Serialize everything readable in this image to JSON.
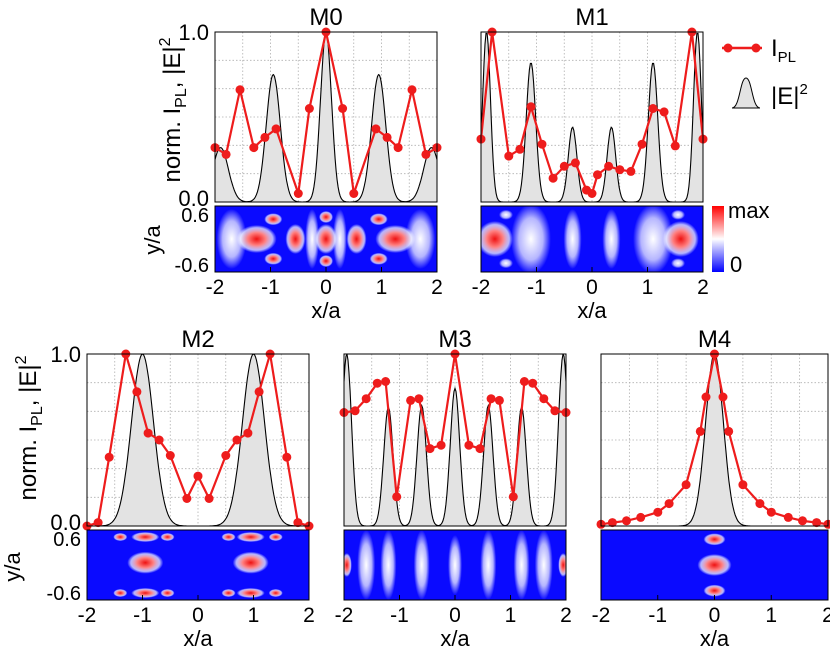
{
  "legend": {
    "ipl_main": "I",
    "ipl_sub": "PL",
    "e2_main": "|E|",
    "e2_sup": "2"
  },
  "colorbar": {
    "max_label": "max",
    "min_label": "0",
    "colors": [
      "#0000ff",
      "#ffffff",
      "#ff0000"
    ]
  },
  "ylabel_main": "norm. I",
  "ylabel_sub": "PL",
  "ylabel_rest": ", |E|",
  "ylabel_sup": "2",
  "map_ylabel": "y/a",
  "colors": {
    "ipl": "#ee1c1c",
    "field_fill": "#e3e3e3",
    "field_line": "#000000"
  },
  "chart_data": [
    {
      "type": "line",
      "title": "M0",
      "xlabel": "x/a",
      "xlim": [
        -2,
        2
      ],
      "ylim": [
        0,
        1
      ],
      "x_ticks": [
        "-2",
        "-1",
        "0",
        "1",
        "2"
      ],
      "y_ticks": [
        "0.0",
        "1.0"
      ],
      "map_y_ticks": [
        "0.6",
        "-0.6"
      ],
      "series": [
        {
          "name": "I_PL",
          "x": [
            -2.0,
            -1.8,
            -1.55,
            -1.3,
            -1.1,
            -0.9,
            -0.5,
            -0.3,
            0.0,
            0.3,
            0.5,
            0.9,
            1.1,
            1.3,
            1.55,
            1.8,
            2.0
          ],
          "y": [
            0.32,
            0.28,
            0.66,
            0.32,
            0.38,
            0.43,
            0.05,
            0.55,
            1.0,
            0.55,
            0.05,
            0.43,
            0.38,
            0.32,
            0.66,
            0.28,
            0.32
          ]
        }
      ],
      "field_peaks": [
        [
          -1.9,
          0.32,
          0.2
        ],
        [
          -0.95,
          0.75,
          0.18
        ],
        [
          0.0,
          1.0,
          0.14
        ],
        [
          0.95,
          0.75,
          0.18
        ],
        [
          1.9,
          0.32,
          0.2
        ]
      ]
    },
    {
      "type": "line",
      "title": "M1",
      "xlabel": "x/a",
      "xlim": [
        -2,
        2
      ],
      "ylim": [
        0,
        1
      ],
      "x_ticks": [
        "-2",
        "-1",
        "0",
        "1",
        "2"
      ],
      "y_ticks": [],
      "map_y_ticks": [],
      "series": [
        {
          "name": "I_PL",
          "x": [
            -2.0,
            -1.8,
            -1.5,
            -1.3,
            -1.1,
            -0.9,
            -0.7,
            -0.5,
            -0.3,
            -0.1,
            0.0,
            0.1,
            0.3,
            0.5,
            0.7,
            0.9,
            1.1,
            1.3,
            1.5,
            1.8,
            2.0
          ],
          "y": [
            0.37,
            1.0,
            0.27,
            0.31,
            0.56,
            0.34,
            0.14,
            0.21,
            0.23,
            0.07,
            0.05,
            0.16,
            0.21,
            0.19,
            0.18,
            0.34,
            0.55,
            0.53,
            0.33,
            1.0,
            0.37
          ]
        }
      ],
      "field_peaks": [
        [
          -1.9,
          1.0,
          0.1
        ],
        [
          -1.1,
          0.82,
          0.12
        ],
        [
          -0.35,
          0.44,
          0.11
        ],
        [
          0.35,
          0.44,
          0.11
        ],
        [
          1.1,
          0.82,
          0.12
        ],
        [
          1.9,
          1.0,
          0.1
        ]
      ]
    },
    {
      "type": "line",
      "title": "M2",
      "xlabel": "x/a",
      "xlim": [
        -2,
        2
      ],
      "ylim": [
        0,
        1
      ],
      "x_ticks": [
        "-2",
        "-1",
        "0",
        "1",
        "2"
      ],
      "y_ticks": [
        "0.0",
        "1.0"
      ],
      "map_y_ticks": [
        "0.6",
        "-0.6"
      ],
      "series": [
        {
          "name": "I_PL",
          "x": [
            -2.0,
            -1.8,
            -1.6,
            -1.3,
            -1.1,
            -0.9,
            -0.7,
            -0.5,
            -0.2,
            0.0,
            0.2,
            0.5,
            0.7,
            0.9,
            1.1,
            1.3,
            1.6,
            1.8,
            2.0
          ],
          "y": [
            0.0,
            0.02,
            0.4,
            1.0,
            0.78,
            0.54,
            0.5,
            0.41,
            0.16,
            0.29,
            0.16,
            0.41,
            0.5,
            0.54,
            0.78,
            1.0,
            0.4,
            0.02,
            0.0
          ]
        }
      ],
      "field_peaks": [
        [
          -1.0,
          1.0,
          0.28
        ],
        [
          1.0,
          1.0,
          0.28
        ]
      ]
    },
    {
      "type": "line",
      "title": "M3",
      "xlabel": "x/a",
      "xlim": [
        -2,
        2
      ],
      "ylim": [
        0,
        1
      ],
      "x_ticks": [
        "-2",
        "-1",
        "0",
        "1",
        "2"
      ],
      "y_ticks": [],
      "map_y_ticks": [],
      "series": [
        {
          "name": "I_PL",
          "x": [
            -2.0,
            -1.8,
            -1.6,
            -1.4,
            -1.25,
            -1.05,
            -0.8,
            -0.65,
            -0.45,
            -0.25,
            0.0,
            0.25,
            0.45,
            0.65,
            0.8,
            1.05,
            1.25,
            1.4,
            1.6,
            1.8,
            2.0
          ],
          "y": [
            0.66,
            0.67,
            0.74,
            0.83,
            0.84,
            0.17,
            0.73,
            0.74,
            0.45,
            0.47,
            1.0,
            0.47,
            0.45,
            0.74,
            0.73,
            0.17,
            0.84,
            0.83,
            0.74,
            0.67,
            0.66
          ]
        }
      ],
      "field_peaks": [
        [
          -1.95,
          1.0,
          0.12
        ],
        [
          -1.2,
          0.69,
          0.12
        ],
        [
          -0.6,
          0.7,
          0.12
        ],
        [
          0.0,
          0.8,
          0.12
        ],
        [
          0.6,
          0.7,
          0.12
        ],
        [
          1.2,
          0.69,
          0.12
        ],
        [
          1.95,
          1.0,
          0.12
        ]
      ]
    },
    {
      "type": "line",
      "title": "M4",
      "xlabel": "x/a",
      "xlim": [
        -2,
        2
      ],
      "ylim": [
        0,
        1
      ],
      "x_ticks": [
        "-2",
        "-1",
        "0",
        "1",
        "2"
      ],
      "y_ticks": [],
      "map_y_ticks": [],
      "series": [
        {
          "name": "I_PL",
          "x": [
            -2.0,
            -1.8,
            -1.55,
            -1.3,
            -1.0,
            -0.8,
            -0.5,
            -0.25,
            -0.15,
            0.0,
            0.15,
            0.25,
            0.5,
            0.8,
            1.0,
            1.3,
            1.55,
            1.8,
            2.0
          ],
          "y": [
            0.01,
            0.02,
            0.03,
            0.05,
            0.08,
            0.13,
            0.24,
            0.55,
            0.75,
            1.0,
            0.75,
            0.55,
            0.24,
            0.13,
            0.08,
            0.05,
            0.03,
            0.02,
            0.01
          ]
        }
      ],
      "field_peaks": [
        [
          0.0,
          1.0,
          0.22
        ]
      ]
    }
  ]
}
